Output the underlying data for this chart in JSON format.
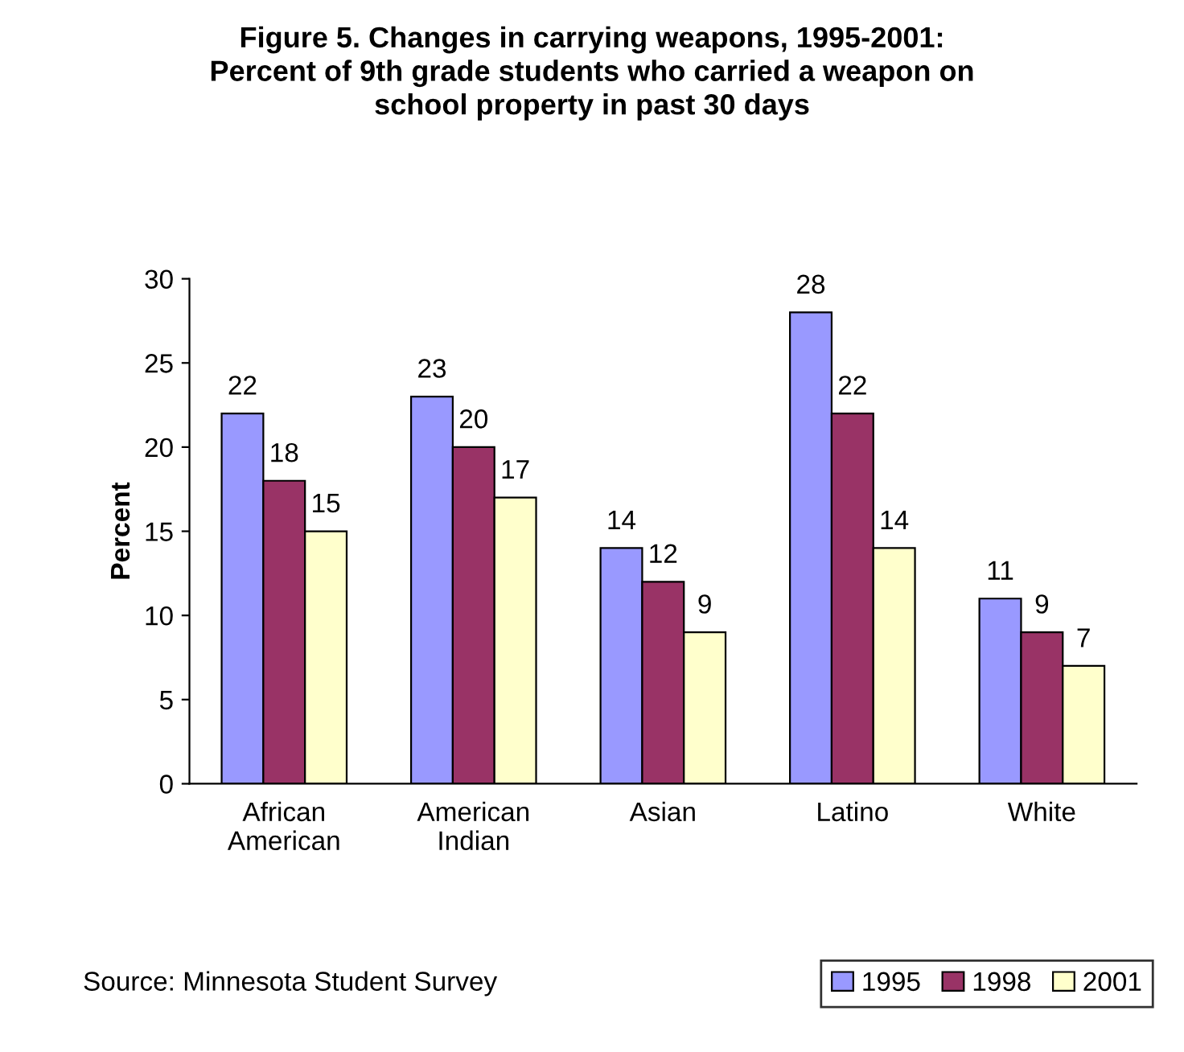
{
  "chart_data": {
    "type": "bar",
    "title": "Figure 5. Changes in carrying weapons, 1995-2001:\nPercent of 9th grade students who carried a weapon on\nschool property in past 30 days",
    "ylabel": "Percent",
    "categories": [
      "African\nAmerican",
      "American\nIndian",
      "Asian",
      "Latino",
      "White"
    ],
    "series": [
      {
        "name": "1995",
        "color": "#9999ff",
        "values": [
          22,
          23,
          14,
          28,
          11
        ],
        "value_labels": [
          "22",
          "23",
          "14",
          "28",
          "11"
        ]
      },
      {
        "name": "1998",
        "color": "#993366",
        "values": [
          18,
          20,
          12,
          22,
          9
        ],
        "value_labels": [
          "18",
          "20",
          "12",
          "22",
          "9"
        ]
      },
      {
        "name": "2001",
        "color": "#ffffcc",
        "values": [
          15,
          17,
          9,
          14,
          7
        ],
        "value_labels": [
          "15",
          "17",
          "9",
          "14",
          "7"
        ]
      }
    ],
    "ylim": [
      0,
      30
    ],
    "yticks": [
      0,
      5,
      10,
      15,
      20,
      25,
      30
    ],
    "grid": false,
    "legend": "bottom right",
    "annotations": [
      "Source: Minnesota Student Survey"
    ]
  }
}
